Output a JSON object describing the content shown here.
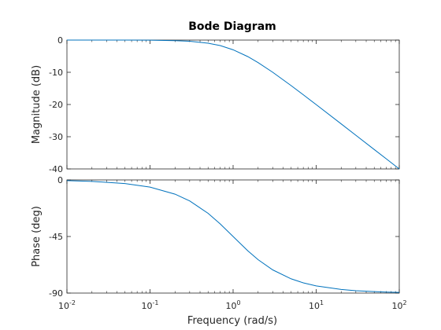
{
  "chart_data": {
    "type": "line",
    "title": "Bode Diagram",
    "xlabel": "Frequency  (rad/s)",
    "xscale": "log",
    "xlim": [
      0.01,
      100
    ],
    "x_ticks": [
      {
        "base": "10",
        "exp": "-2"
      },
      {
        "base": "10",
        "exp": "-1"
      },
      {
        "base": "10",
        "exp": "0"
      },
      {
        "base": "10",
        "exp": "1"
      },
      {
        "base": "10",
        "exp": "2"
      }
    ],
    "series_color": "#0072bd",
    "grid": false,
    "panels": [
      {
        "name": "magnitude",
        "ylabel": "Magnitude (dB)",
        "ylim": [
          -40,
          0
        ],
        "yticks": [
          "0",
          "-10",
          "-20",
          "-30",
          "-40"
        ],
        "x": [
          0.01,
          0.02,
          0.05,
          0.1,
          0.2,
          0.3,
          0.5,
          0.7,
          1,
          1.5,
          2,
          3,
          5,
          7,
          10,
          20,
          30,
          50,
          70,
          100
        ],
        "y": [
          0,
          0,
          -0.01,
          -0.04,
          -0.17,
          -0.37,
          -0.97,
          -1.71,
          -3.01,
          -5.12,
          -6.99,
          -10.0,
          -14.15,
          -16.99,
          -20.04,
          -26.02,
          -29.54,
          -33.98,
          -36.9,
          -40.0
        ]
      },
      {
        "name": "phase",
        "ylabel": "Phase (deg)",
        "ylim": [
          -90,
          0
        ],
        "yticks": [
          "0",
          "-45",
          "-90"
        ],
        "x": [
          0.01,
          0.02,
          0.05,
          0.1,
          0.2,
          0.3,
          0.5,
          0.7,
          1,
          1.5,
          2,
          3,
          5,
          7,
          10,
          20,
          30,
          50,
          70,
          100
        ],
        "y": [
          -0.57,
          -1.15,
          -2.86,
          -5.71,
          -11.31,
          -16.7,
          -26.57,
          -34.99,
          -45.0,
          -56.31,
          -63.43,
          -71.57,
          -78.69,
          -81.87,
          -84.29,
          -87.14,
          -88.09,
          -88.85,
          -89.18,
          -89.43
        ]
      }
    ]
  }
}
